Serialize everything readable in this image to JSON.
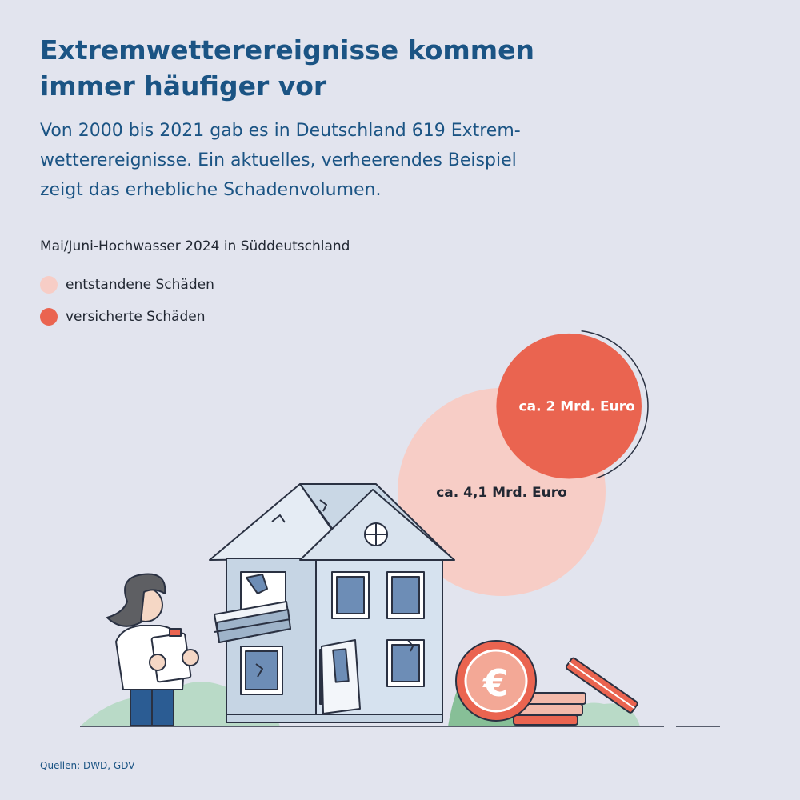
{
  "header": {
    "title_line1": "Extremwetterereignisse kommen",
    "title_line2": "immer häufiger vor",
    "subtitle_line1": "Von 2000 bis 2021 gab es in Deutschland 619 Extrem-",
    "subtitle_line2": "wetterereignisse. Ein aktuelles, verheerendes Beispiel",
    "subtitle_line3": "zeigt das erhebliche Schadenvolumen."
  },
  "chart_data": {
    "type": "bubble",
    "title": "Mai/Juni-Hochwasser 2024 in Süddeutschland",
    "unit": "Mrd. Euro",
    "series": [
      {
        "name": "entstandene Schäden",
        "value": 4.1,
        "label": "ca. 4,1 Mrd. Euro",
        "color": "#f7cdc6",
        "text_color": "#222833"
      },
      {
        "name": "versicherte Schäden",
        "value": 2,
        "label": "ca. 2 Mrd. Euro",
        "color": "#ea6450",
        "text_color": "#ffffff"
      }
    ]
  },
  "footer": {
    "source": "Quellen: DWD, GDV"
  },
  "icons": [
    "euro-coin-icon",
    "house-illustration",
    "inspector-illustration",
    "coin-stack-icon"
  ]
}
